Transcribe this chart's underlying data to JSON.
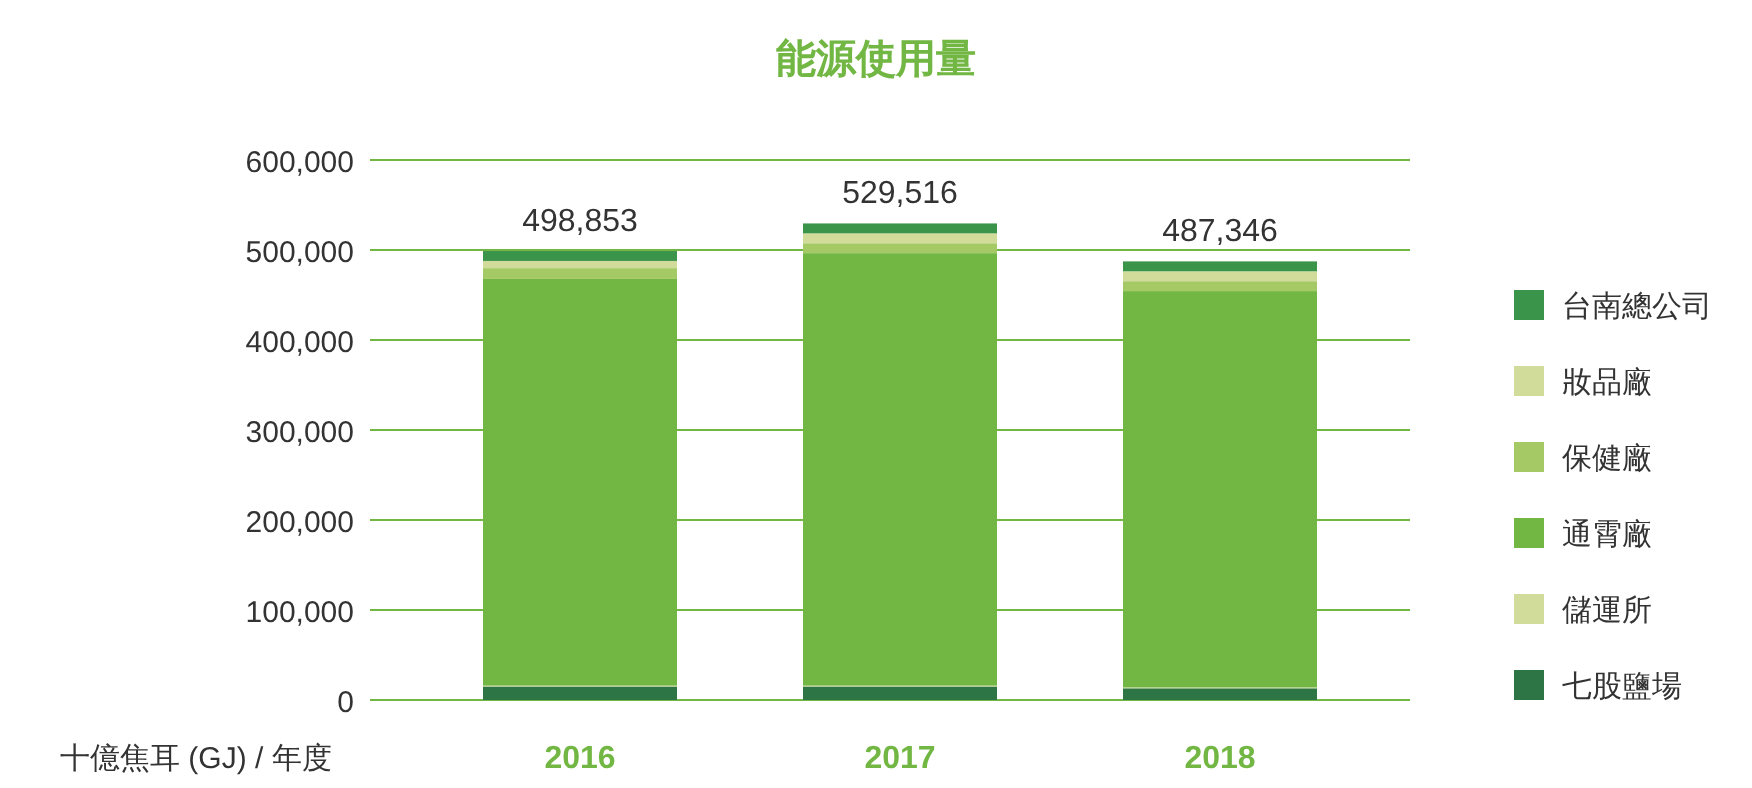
{
  "chart_data": {
    "type": "bar",
    "stacked": true,
    "title": "能源使用量",
    "xlabel": "十億焦耳 (GJ) / 年度",
    "categories": [
      "2016",
      "2017",
      "2018"
    ],
    "series": [
      {
        "name": "七股鹽場",
        "color": "#2e7545",
        "values": [
          15000,
          15000,
          13000
        ]
      },
      {
        "name": "儲運所",
        "color": "#d2dc9a",
        "values": [
          1000,
          1000,
          1000
        ]
      },
      {
        "name": "通霄廠",
        "color": "#72b743",
        "values": [
          451853,
          480516,
          440346
        ]
      },
      {
        "name": "保健廠",
        "color": "#a5c964",
        "values": [
          12000,
          11000,
          11000
        ]
      },
      {
        "name": "妝品廠",
        "color": "#d2dc9a",
        "values": [
          8000,
          11000,
          11000
        ]
      },
      {
        "name": "台南總公司",
        "color": "#3a944a",
        "values": [
          11000,
          11000,
          11000
        ]
      }
    ],
    "totals": [
      "498,853",
      "529,516",
      "487,346"
    ],
    "ylim": [
      0,
      600000
    ],
    "yticks": [
      {
        "value": 0,
        "label": "0"
      },
      {
        "value": 100000,
        "label": "100,000"
      },
      {
        "value": 200000,
        "label": "200,000"
      },
      {
        "value": 300000,
        "label": "300,000"
      },
      {
        "value": 400000,
        "label": "400,000"
      },
      {
        "value": 500000,
        "label": "500,000"
      },
      {
        "value": 600000,
        "label": "600,000"
      }
    ],
    "grid": "y",
    "legend": "right"
  }
}
